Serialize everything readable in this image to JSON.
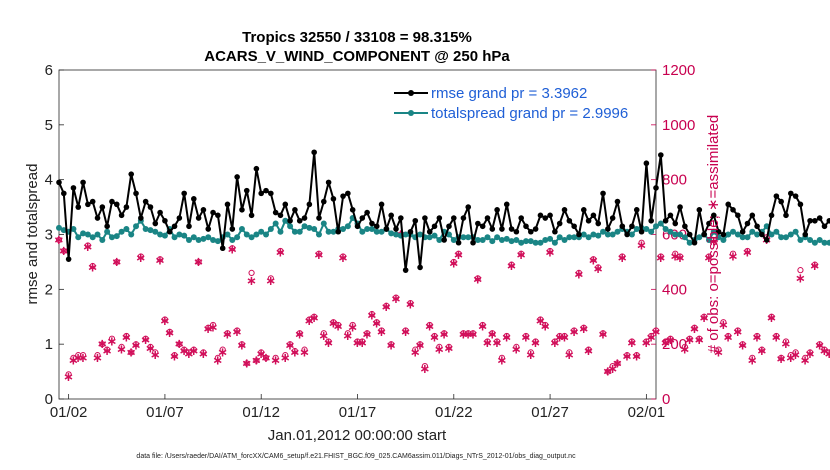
{
  "chart_data": {
    "type": "line",
    "title": "Tropics 32550 / 33108 = 98.315%",
    "subtitle": "ACARS_V_WIND_COMPONENT @ 250 hPa",
    "xlabel": "Jan.01,2012 00:00:00 start",
    "ylabel_left": "rmse and totalspread",
    "ylabel_right": "# of obs: o=possible; ∗=assimilated",
    "ylim_left": [
      0,
      6
    ],
    "ylim_right": [
      0,
      1200
    ],
    "yticks_left": [
      "0",
      "1",
      "2",
      "3",
      "4",
      "5",
      "6"
    ],
    "yticks_right": [
      "0",
      "200",
      "400",
      "600",
      "800",
      "1000",
      "1200"
    ],
    "xlim_days": [
      0.5,
      31.5
    ],
    "xticks": [
      {
        "day": 1,
        "label": "01/02"
      },
      {
        "day": 6,
        "label": "01/07"
      },
      {
        "day": 11,
        "label": "01/12"
      },
      {
        "day": 16,
        "label": "01/17"
      },
      {
        "day": 21,
        "label": "01/22"
      },
      {
        "day": 26,
        "label": "01/27"
      },
      {
        "day": 31,
        "label": "02/01"
      }
    ],
    "x_step_days": 0.25,
    "x_start_day": 0.5,
    "series": [
      {
        "name": "rmse",
        "legend": "rmse grand pr = 3.3962",
        "color": "#000000",
        "axis": "left",
        "values": [
          3.95,
          3.75,
          2.55,
          3.85,
          3.5,
          3.95,
          3.55,
          3.6,
          3.3,
          3.5,
          3.15,
          3.6,
          3.55,
          3.35,
          3.5,
          4.1,
          3.75,
          3.3,
          3.6,
          3.5,
          3.2,
          3.4,
          3.25,
          3.05,
          3.15,
          3.3,
          3.75,
          3.15,
          3.65,
          3.3,
          3.45,
          3.1,
          3.4,
          3.35,
          2.75,
          3.55,
          3.1,
          4.05,
          3.45,
          3.8,
          3.35,
          4.2,
          3.75,
          3.8,
          3.75,
          3.4,
          3.35,
          3.55,
          3.25,
          3.45,
          3.25,
          3.3,
          3.55,
          4.5,
          3.3,
          3.6,
          3.95,
          3.65,
          3.05,
          3.7,
          3.75,
          3.45,
          3.15,
          3.3,
          3.4,
          3.2,
          3.15,
          3.55,
          3.1,
          3.35,
          3.1,
          3.3,
          2.35,
          3.05,
          3.25,
          2.4,
          3.3,
          3.05,
          3.15,
          3.3,
          2.9,
          3.15,
          3.3,
          2.85,
          3.3,
          3.5,
          2.85,
          3.2,
          3.15,
          3.3,
          3.1,
          3.45,
          3.1,
          3.55,
          3.1,
          3.05,
          3.3,
          3.15,
          3.05,
          3.1,
          3.35,
          3.3,
          3.35,
          3.05,
          3.2,
          3.45,
          3.25,
          3.15,
          3.0,
          3.45,
          3.25,
          3.35,
          3.2,
          3.75,
          3.1,
          3.3,
          3.6,
          3.15,
          3.0,
          3.15,
          3.45,
          3.05,
          4.3,
          3.25,
          3.85,
          4.45,
          3.25,
          3.35,
          3.2,
          3.5,
          3.15,
          3.0,
          2.85,
          3.45,
          3.0,
          3.2,
          3.35,
          3.05,
          3.0,
          3.55,
          3.45,
          3.35,
          3.05,
          3.2,
          3.35,
          3.15,
          3.0,
          2.9,
          3.35,
          3.7,
          3.6,
          3.35,
          3.75,
          3.7,
          3.55,
          3.0,
          3.25,
          3.25,
          3.3,
          3.15,
          3.25,
          3.25,
          3.4,
          2.85,
          3.4
        ]
      },
      {
        "name": "totalspread",
        "legend": "totalspread grand pr = 2.9996",
        "color": "#1a8585",
        "axis": "left",
        "values": [
          3.12,
          3.08,
          3.05,
          3.1,
          2.95,
          3.02,
          3.0,
          2.95,
          3.0,
          2.9,
          3.05,
          2.95,
          2.97,
          3.05,
          3.1,
          3.0,
          3.15,
          3.25,
          3.1,
          3.08,
          3.05,
          3.0,
          2.98,
          3.1,
          2.95,
          3.0,
          2.98,
          2.9,
          2.95,
          2.9,
          2.92,
          2.95,
          2.9,
          2.88,
          2.95,
          3.0,
          2.9,
          2.95,
          3.1,
          3.0,
          2.95,
          3.0,
          3.05,
          3.0,
          3.1,
          3.2,
          3.05,
          3.25,
          3.15,
          3.05,
          3.05,
          3.15,
          3.12,
          3.1,
          3.0,
          3.2,
          3.05,
          3.05,
          3.1,
          3.1,
          3.15,
          3.3,
          3.2,
          3.05,
          3.1,
          3.1,
          3.05,
          3.05,
          3.1,
          3.02,
          3.0,
          2.98,
          3.0,
          3.0,
          2.95,
          3.0,
          2.95,
          2.95,
          2.98,
          2.9,
          3.05,
          3.0,
          2.9,
          2.95,
          2.95,
          2.95,
          2.95,
          2.9,
          2.9,
          2.95,
          2.88,
          2.95,
          2.9,
          2.92,
          2.88,
          2.9,
          2.85,
          2.88,
          2.88,
          2.85,
          2.85,
          2.9,
          2.92,
          2.85,
          2.95,
          2.9,
          2.95,
          2.95,
          2.95,
          3.0,
          2.95,
          3.0,
          2.98,
          3.05,
          3.0,
          3.0,
          3.05,
          3.1,
          3.05,
          3.0,
          3.1,
          3.12,
          3.1,
          3.05,
          3.15,
          3.2,
          3.1,
          3.05,
          3.0,
          3.0,
          2.95,
          2.85,
          2.9,
          2.95,
          3.0,
          2.9,
          3.05,
          2.95,
          2.9,
          3.0,
          3.05,
          3.0,
          2.95,
          2.95,
          3.05,
          3.0,
          3.05,
          3.15,
          3.0,
          3.05,
          2.95,
          2.95,
          3.0,
          3.05,
          2.9,
          2.95,
          2.9,
          2.85,
          2.9,
          2.85,
          2.85,
          2.82,
          2.8
        ]
      },
      {
        "name": "nposs",
        "legend": "",
        "marker": "o",
        "color": "#d10f5a",
        "axis": "right",
        "values": [
          580,
          540,
          90,
          150,
          160,
          160,
          560,
          485,
          160,
          200,
          180,
          220,
          500,
          190,
          230,
          170,
          200,
          520,
          220,
          190,
          170,
          510,
          290,
          245,
          160,
          200,
          180,
          170,
          180,
          500,
          170,
          260,
          270,
          150,
          180,
          240,
          550,
          250,
          200,
          130,
          460,
          140,
          170,
          150,
          440,
          150,
          540,
          160,
          200,
          175,
          240,
          180,
          290,
          300,
          530,
          240,
          210,
          280,
          270,
          520,
          240,
          270,
          210,
          210,
          240,
          310,
          280,
          250,
          340,
          200,
          370,
          600,
          250,
          350,
          180,
          200,
          120,
          270,
          230,
          190,
          240,
          190,
          500,
          530,
          240,
          240,
          240,
          440,
          270,
          210,
          240,
          210,
          150,
          230,
          490,
          190,
          530,
          230,
          170,
          210,
          290,
          270,
          540,
          210,
          230,
          230,
          170,
          250,
          460,
          260,
          180,
          510,
          480,
          240,
          100,
          120,
          130,
          520,
          160,
          210,
          160,
          570,
          210,
          230,
          250,
          520,
          210,
          220,
          530,
          520,
          190,
          220,
          260,
          220,
          300,
          520,
          580,
          180,
          280,
          230,
          530,
          250,
          200,
          540,
          150,
          230,
          180,
          590,
          300,
          230,
          150,
          210,
          160,
          170,
          470,
          150,
          170,
          490,
          200,
          180,
          170,
          180,
          500,
          310,
          180,
          0
        ]
      },
      {
        "name": "nused",
        "legend": "",
        "marker": "*",
        "color": "#d10f5a",
        "axis": "right",
        "values": [
          580,
          540,
          80,
          140,
          150,
          150,
          555,
          480,
          150,
          200,
          175,
          210,
          500,
          180,
          225,
          170,
          195,
          515,
          215,
          185,
          160,
          505,
          285,
          240,
          155,
          200,
          175,
          165,
          175,
          500,
          165,
          255,
          260,
          140,
          170,
          235,
          545,
          245,
          195,
          130,
          430,
          140,
          165,
          150,
          430,
          140,
          535,
          150,
          195,
          170,
          235,
          170,
          285,
          295,
          525,
          230,
          205,
          275,
          265,
          515,
          230,
          260,
          205,
          205,
          235,
          305,
          275,
          245,
          335,
          195,
          365,
          600,
          245,
          345,
          170,
          195,
          110,
          265,
          225,
          180,
          235,
          185,
          495,
          525,
          235,
          235,
          235,
          435,
          265,
          205,
          235,
          205,
          140,
          225,
          485,
          180,
          525,
          225,
          160,
          205,
          285,
          265,
          535,
          205,
          225,
          225,
          160,
          245,
          455,
          255,
          175,
          505,
          475,
          235,
          100,
          110,
          130,
          515,
          155,
          205,
          155,
          560,
          205,
          225,
          245,
          515,
          205,
          215,
          520,
          515,
          180,
          215,
          255,
          215,
          295,
          515,
          575,
          170,
          270,
          225,
          520,
          245,
          195,
          535,
          140,
          225,
          175,
          580,
          295,
          225,
          145,
          200,
          150,
          160,
          440,
          140,
          165,
          485,
          195,
          175,
          165,
          175,
          495,
          305,
          175,
          0
        ]
      }
    ]
  },
  "footnote": "data file: /Users/raeder/DAI/ATM_forcXX/CAM6_setup/f.e21.FHIST_BGC.f09_025.CAM6assim.011/Diags_NTrS_2012-01/obs_diag_output.nc"
}
